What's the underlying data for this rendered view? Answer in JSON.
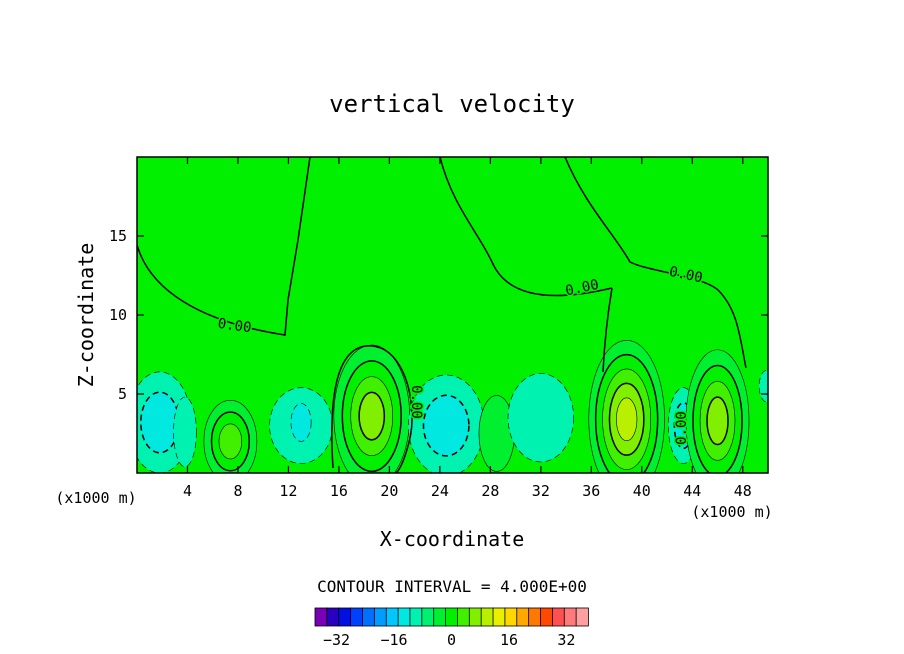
{
  "chart_data": {
    "type": "heatmap",
    "title": "vertical velocity",
    "xlabel": "X-coordinate",
    "ylabel": "Z-coordinate",
    "x_unit_left": "(x1000 m)",
    "x_unit_right": "(x1000 m)",
    "xlim": [
      0,
      50
    ],
    "ylim": [
      0,
      20
    ],
    "xticks": [
      4,
      8,
      12,
      16,
      20,
      24,
      28,
      32,
      36,
      40,
      44,
      48
    ],
    "yticks": [
      5,
      10,
      15
    ],
    "contour_labels": [
      "0.00",
      "0.00",
      "0.00",
      "0.00",
      "0.00"
    ],
    "contour_interval_text": "CONTOUR INTERVAL = 4.000E+00",
    "colorbar": {
      "tick_values": [
        -32,
        -16,
        0,
        16,
        32
      ],
      "tick_labels": [
        "−32",
        "−16",
        "0",
        "16",
        "32"
      ],
      "min": -38,
      "max": 38,
      "bin_width": 4,
      "colors": [
        "#7a00b8",
        "#2a00c0",
        "#0010e0",
        "#0040ff",
        "#0070ff",
        "#009cff",
        "#00c8ff",
        "#00e8e0",
        "#00f2b0",
        "#00f070",
        "#00f030",
        "#00f000",
        "#40f000",
        "#80f000",
        "#b8f000",
        "#e8f000",
        "#ffd800",
        "#ffa800",
        "#ff7800",
        "#ff4800",
        "#ff5050",
        "#ff7a7a",
        "#ffa0a0"
      ]
    },
    "blobs": [
      {
        "x": 1.8,
        "z": 3.2,
        "rx": 2.5,
        "rz": 3.2,
        "levels": [
          -4,
          -8
        ]
      },
      {
        "x": 3.8,
        "z": 2.6,
        "rx": 0.9,
        "rz": 2.2,
        "levels": [
          -4
        ]
      },
      {
        "x": 7.4,
        "z": 2.0,
        "rx": 2.1,
        "rz": 2.6,
        "levels": [
          4,
          8,
          12
        ]
      },
      {
        "x": 13.0,
        "z": 3.0,
        "rx": 2.5,
        "rz": 2.4,
        "levels": [
          -4
        ]
      },
      {
        "x": 13.0,
        "z": 3.2,
        "rx": 0.8,
        "rz": 1.2,
        "levels": [
          -8
        ]
      },
      {
        "x": 18.6,
        "z": 3.6,
        "rx": 3.0,
        "rz": 4.5,
        "levels": [
          4,
          8,
          12,
          16
        ]
      },
      {
        "x": 24.5,
        "z": 3.0,
        "rx": 3.0,
        "rz": 3.2,
        "levels": [
          -4,
          -8
        ]
      },
      {
        "x": 28.5,
        "z": 2.5,
        "rx": 1.4,
        "rz": 2.4,
        "levels": [
          4
        ]
      },
      {
        "x": 32.0,
        "z": 3.5,
        "rx": 2.6,
        "rz": 2.8,
        "levels": [
          -4
        ]
      },
      {
        "x": 38.8,
        "z": 3.4,
        "rx": 3.0,
        "rz": 5.0,
        "levels": [
          4,
          8,
          12,
          16,
          20
        ]
      },
      {
        "x": 43.3,
        "z": 3.0,
        "rx": 1.2,
        "rz": 2.4,
        "levels": [
          -4,
          -8
        ]
      },
      {
        "x": 46.0,
        "z": 3.3,
        "rx": 2.5,
        "rz": 4.5,
        "levels": [
          4,
          8,
          12,
          16
        ]
      },
      {
        "x": 49.9,
        "z": 5.5,
        "rx": 0.6,
        "rz": 1.0,
        "levels": [
          -4
        ]
      }
    ]
  }
}
